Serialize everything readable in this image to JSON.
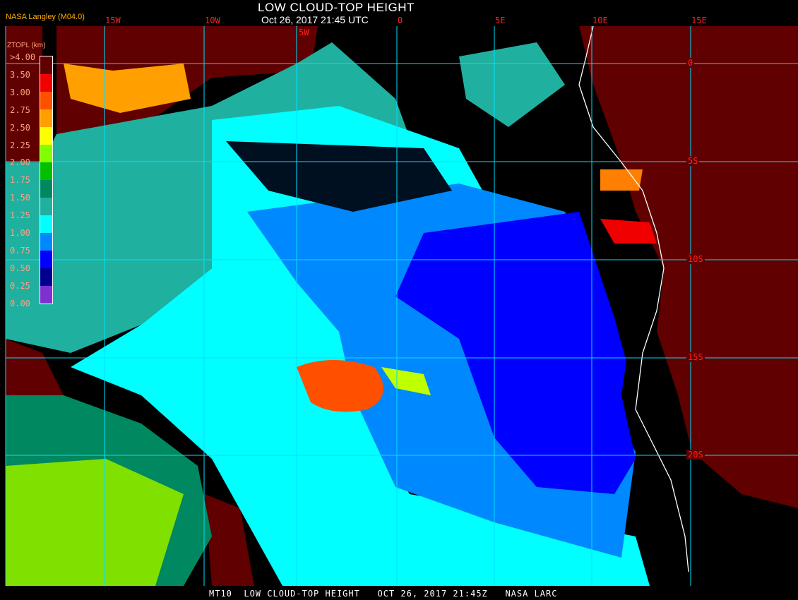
{
  "header": {
    "title": "LOW CLOUD-TOP HEIGHT",
    "subtitle": "Oct 26, 2017 21:45 UTC",
    "organization": "NASA Langley (M04.0)"
  },
  "footer": {
    "text": "MT10  LOW CLOUD-TOP HEIGHT   OCT 26, 2017 21:45Z   NASA LARC"
  },
  "grid": {
    "longitude_labels": [
      "15W",
      "10W",
      "5W",
      "0",
      "5E",
      "10E",
      "15E"
    ],
    "latitude_labels": [
      "0",
      "5S",
      "10S",
      "15S",
      "20S"
    ],
    "grid_color": "#00e0ff",
    "label_color": "#ff2020",
    "coastline_color": "#ffffff"
  },
  "legend": {
    "title": "ZTOPL (km)",
    "labels": [
      ">4.00",
      "3.50",
      "3.00",
      "2.75",
      "2.50",
      "2.25",
      "2.00",
      "1.75",
      "1.50",
      "1.25",
      "1.00",
      "0.75",
      "0.50",
      "0.25",
      "0.00"
    ],
    "colors": [
      "#600000",
      "#f00000",
      "#ff5000",
      "#ffa000",
      "#ffff00",
      "#80ff00",
      "#00c000",
      "#008860",
      "#20b0a0",
      "#00ffff",
      "#0088ff",
      "#0000ff",
      "#000090",
      "#8030d0"
    ]
  }
}
